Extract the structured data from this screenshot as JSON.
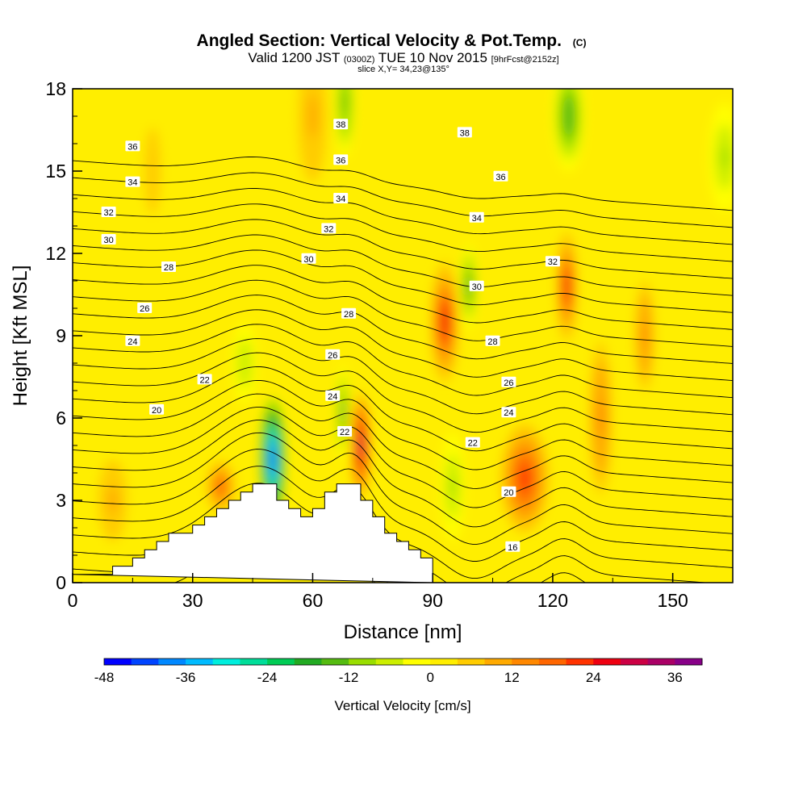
{
  "chart_data": {
    "type": "heatmap",
    "title_parts": {
      "main": "Angled Section: Vertical Velocity & Pot.Temp.",
      "copyright": "(C)",
      "valid_prefix": "Valid 1200 JST",
      "zulu": "(0300Z)",
      "valid_date": "TUE 10 Nov 2015",
      "forecast": "[9hrFcst@2152z]",
      "slice": "slice X,Y= 34,23@135°"
    },
    "xlabel": "Distance [nm]",
    "ylabel": "Height [Kft MSL]",
    "xlim": [
      0,
      165
    ],
    "ylim": [
      0,
      18
    ],
    "x_ticks": [
      "0",
      "30",
      "60",
      "90",
      "120",
      "150"
    ],
    "y_ticks": [
      "0",
      "3",
      "6",
      "9",
      "12",
      "15",
      "18"
    ],
    "grid": false,
    "colorbar": {
      "label": "Vertical Velocity [cm/s]",
      "range": [
        -48,
        40
      ],
      "step": 4,
      "tick_labels": [
        "-48",
        "-36",
        "-24",
        "-12",
        "0",
        "12",
        "24",
        "36"
      ],
      "colors": [
        "#0000ff",
        "#0044ff",
        "#0088ff",
        "#00bbff",
        "#00eedd",
        "#00dd99",
        "#00cc55",
        "#22aa22",
        "#55bb11",
        "#99dd00",
        "#ccee00",
        "#ffff00",
        "#ffee00",
        "#ffcc00",
        "#ffaa00",
        "#ff8800",
        "#ff6600",
        "#ff3300",
        "#ee0011",
        "#cc0044",
        "#aa0066",
        "#880088"
      ]
    },
    "terrain": [
      [
        0,
        0.3
      ],
      [
        10,
        0.3
      ],
      [
        10,
        0.6
      ],
      [
        15,
        0.6
      ],
      [
        15,
        0.9
      ],
      [
        18,
        0.9
      ],
      [
        18,
        1.2
      ],
      [
        21,
        1.2
      ],
      [
        21,
        1.5
      ],
      [
        24,
        1.5
      ],
      [
        24,
        1.8
      ],
      [
        30,
        1.8
      ],
      [
        30,
        2.1
      ],
      [
        33,
        2.1
      ],
      [
        33,
        2.4
      ],
      [
        36,
        2.4
      ],
      [
        36,
        2.7
      ],
      [
        39,
        2.7
      ],
      [
        39,
        3.0
      ],
      [
        42,
        3.0
      ],
      [
        42,
        3.3
      ],
      [
        45,
        3.3
      ],
      [
        45,
        3.6
      ],
      [
        51,
        3.6
      ],
      [
        51,
        3.0
      ],
      [
        54,
        3.0
      ],
      [
        54,
        2.7
      ],
      [
        57,
        2.7
      ],
      [
        57,
        2.4
      ],
      [
        60,
        2.4
      ],
      [
        60,
        2.7
      ],
      [
        63,
        2.7
      ],
      [
        63,
        3.3
      ],
      [
        66,
        3.3
      ],
      [
        66,
        3.6
      ],
      [
        72,
        3.6
      ],
      [
        72,
        3.0
      ],
      [
        75,
        3.0
      ],
      [
        75,
        2.4
      ],
      [
        78,
        2.4
      ],
      [
        78,
        1.8
      ],
      [
        81,
        1.8
      ],
      [
        81,
        1.5
      ],
      [
        84,
        1.5
      ],
      [
        84,
        1.2
      ],
      [
        87,
        1.2
      ],
      [
        87,
        0.9
      ],
      [
        90,
        0.9
      ],
      [
        90,
        0
      ]
    ],
    "updraft_cells": [
      {
        "x": 93,
        "z": 9.5,
        "w": 26,
        "rx": 3.5,
        "rz": 2.2
      },
      {
        "x": 123.5,
        "z": 10.8,
        "w": 26,
        "rx": 2.5,
        "rz": 2.0
      },
      {
        "x": 113,
        "z": 3.8,
        "w": 20,
        "rx": 6,
        "rz": 2.0
      },
      {
        "x": 132,
        "z": 6.0,
        "w": 14,
        "rx": 3.5,
        "rz": 3.5
      },
      {
        "x": 143,
        "z": 9.0,
        "w": 14,
        "rx": 3,
        "rz": 2.5
      },
      {
        "x": 37,
        "z": 3.5,
        "w": 16,
        "rx": 4.5,
        "rz": 1.2
      },
      {
        "x": 72,
        "z": 5.0,
        "w": 30,
        "rx": 2.5,
        "rz": 2.0
      },
      {
        "x": 10,
        "z": 3.0,
        "w": 8,
        "rx": 6,
        "rz": 2.5
      },
      {
        "x": 60,
        "z": 17,
        "w": 8,
        "rx": 6,
        "rz": 4
      },
      {
        "x": 20,
        "z": 15,
        "w": 6,
        "rx": 5,
        "rz": 4
      }
    ],
    "downdraft_cells": [
      {
        "x": 50,
        "z": 4.5,
        "w": -44,
        "rx": 3,
        "rz": 2.2
      },
      {
        "x": 67.5,
        "z": 6.2,
        "w": -18,
        "rx": 1.5,
        "rz": 1.8
      },
      {
        "x": 99,
        "z": 10.8,
        "w": -18,
        "rx": 2,
        "rz": 1.6
      },
      {
        "x": 124,
        "z": 17.0,
        "w": -16,
        "rx": 4,
        "rz": 2.0
      },
      {
        "x": 95,
        "z": 3.5,
        "w": -10,
        "rx": 3,
        "rz": 2.0
      },
      {
        "x": 68,
        "z": 17.5,
        "w": -14,
        "rx": 2.5,
        "rz": 2.0
      },
      {
        "x": 163,
        "z": 15.5,
        "w": -10,
        "rx": 4,
        "rz": 2.0
      },
      {
        "x": 43,
        "z": 8.0,
        "w": -8,
        "rx": 3,
        "rz": 1.5
      }
    ],
    "isentrope_levels": [
      16,
      17,
      18,
      19,
      20,
      21,
      22,
      23,
      24,
      25,
      26,
      27,
      28,
      29,
      30,
      31,
      32,
      33,
      34,
      35,
      36,
      37,
      38,
      39,
      40,
      41
    ],
    "isentrope_labels": [
      {
        "text": "16",
        "x": 110,
        "z": 1.3
      },
      {
        "text": "20",
        "x": 21,
        "z": 6.3
      },
      {
        "text": "20",
        "x": 109,
        "z": 3.3
      },
      {
        "text": "22",
        "x": 33,
        "z": 7.4
      },
      {
        "text": "22",
        "x": 100,
        "z": 5.1
      },
      {
        "text": "22",
        "x": 68,
        "z": 5.5
      },
      {
        "text": "24",
        "x": 15,
        "z": 8.8
      },
      {
        "text": "24",
        "x": 65,
        "z": 6.8
      },
      {
        "text": "24",
        "x": 109,
        "z": 6.2
      },
      {
        "text": "26",
        "x": 18,
        "z": 10.0
      },
      {
        "text": "26",
        "x": 65,
        "z": 8.3
      },
      {
        "text": "26",
        "x": 109,
        "z": 7.3
      },
      {
        "text": "28",
        "x": 24,
        "z": 11.5
      },
      {
        "text": "28",
        "x": 69,
        "z": 9.8
      },
      {
        "text": "28",
        "x": 105,
        "z": 8.8
      },
      {
        "text": "30",
        "x": 9,
        "z": 12.5
      },
      {
        "text": "30",
        "x": 59,
        "z": 11.8
      },
      {
        "text": "30",
        "x": 101,
        "z": 10.8
      },
      {
        "text": "32",
        "x": 9,
        "z": 13.5
      },
      {
        "text": "32",
        "x": 64,
        "z": 12.9
      },
      {
        "text": "32",
        "x": 120,
        "z": 11.7
      },
      {
        "text": "34",
        "x": 15,
        "z": 14.6
      },
      {
        "text": "34",
        "x": 67,
        "z": 14.0
      },
      {
        "text": "34",
        "x": 101,
        "z": 13.3
      },
      {
        "text": "36",
        "x": 15,
        "z": 15.9
      },
      {
        "text": "36",
        "x": 67,
        "z": 15.4
      },
      {
        "text": "36",
        "x": 107,
        "z": 14.8
      },
      {
        "text": "38",
        "x": 67,
        "z": 16.7
      },
      {
        "text": "38",
        "x": 98,
        "z": 16.4
      }
    ]
  }
}
